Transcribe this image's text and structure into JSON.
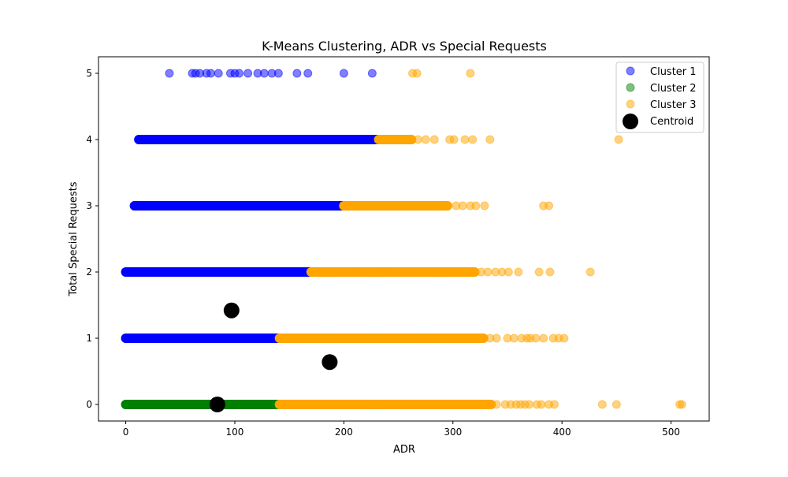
{
  "chart_data": {
    "type": "scatter",
    "title": "K-Means Clustering, ADR vs Special Requests",
    "xlabel": "ADR",
    "ylabel": "Total Special Requests",
    "xlim": [
      -25,
      535
    ],
    "ylim": [
      -0.25,
      5.25
    ],
    "xticks": [
      0,
      100,
      200,
      300,
      400,
      500
    ],
    "yticks": [
      0,
      1,
      2,
      3,
      4,
      5
    ],
    "grid": false,
    "legend_position": "top-right",
    "series": [
      {
        "name": "Cluster 1",
        "color": "#0000ff",
        "segments": [
          {
            "y": 1,
            "x_from": 0,
            "x_to": 141
          },
          {
            "y": 2,
            "x_from": 0,
            "x_to": 170
          },
          {
            "y": 3,
            "x_from": 8,
            "x_to": 200
          },
          {
            "y": 4,
            "x_from": 12,
            "x_to": 232
          }
        ],
        "points": [
          {
            "x": 40,
            "y": 5
          },
          {
            "x": 61,
            "y": 5
          },
          {
            "x": 64,
            "y": 5
          },
          {
            "x": 68,
            "y": 5
          },
          {
            "x": 74,
            "y": 5
          },
          {
            "x": 78,
            "y": 5
          },
          {
            "x": 85,
            "y": 5
          },
          {
            "x": 96,
            "y": 5
          },
          {
            "x": 100,
            "y": 5
          },
          {
            "x": 104,
            "y": 5
          },
          {
            "x": 112,
            "y": 5
          },
          {
            "x": 121,
            "y": 5
          },
          {
            "x": 127,
            "y": 5
          },
          {
            "x": 134,
            "y": 5
          },
          {
            "x": 140,
            "y": 5
          },
          {
            "x": 157,
            "y": 5
          },
          {
            "x": 167,
            "y": 5
          },
          {
            "x": 200,
            "y": 5
          },
          {
            "x": 226,
            "y": 5
          },
          {
            "x": 12,
            "y": 4
          },
          {
            "x": 21,
            "y": 4
          },
          {
            "x": 29,
            "y": 4
          },
          {
            "x": 8,
            "y": 3
          },
          {
            "x": 1,
            "y": 2
          },
          {
            "x": 1,
            "y": 1
          }
        ]
      },
      {
        "name": "Cluster 2",
        "color": "#008000",
        "segments": [
          {
            "y": 0,
            "x_from": 0,
            "x_to": 141
          }
        ],
        "points": [
          {
            "x": 0,
            "y": 0
          },
          {
            "x": 4,
            "y": 0
          }
        ]
      },
      {
        "name": "Cluster 3",
        "color": "#ffa500",
        "segments": [
          {
            "y": 0,
            "x_from": 141,
            "x_to": 335
          },
          {
            "y": 1,
            "x_from": 141,
            "x_to": 328
          },
          {
            "y": 2,
            "x_from": 170,
            "x_to": 320
          },
          {
            "y": 3,
            "x_from": 200,
            "x_to": 295
          },
          {
            "y": 4,
            "x_from": 232,
            "x_to": 262
          }
        ],
        "points": [
          {
            "x": 263,
            "y": 5
          },
          {
            "x": 267,
            "y": 5
          },
          {
            "x": 316,
            "y": 5
          },
          {
            "x": 268,
            "y": 4
          },
          {
            "x": 275,
            "y": 4
          },
          {
            "x": 283,
            "y": 4
          },
          {
            "x": 297,
            "y": 4
          },
          {
            "x": 301,
            "y": 4
          },
          {
            "x": 311,
            "y": 4
          },
          {
            "x": 318,
            "y": 4
          },
          {
            "x": 334,
            "y": 4
          },
          {
            "x": 452,
            "y": 4
          },
          {
            "x": 303,
            "y": 3
          },
          {
            "x": 309,
            "y": 3
          },
          {
            "x": 316,
            "y": 3
          },
          {
            "x": 321,
            "y": 3
          },
          {
            "x": 329,
            "y": 3
          },
          {
            "x": 383,
            "y": 3
          },
          {
            "x": 388,
            "y": 3
          },
          {
            "x": 326,
            "y": 2
          },
          {
            "x": 332,
            "y": 2
          },
          {
            "x": 339,
            "y": 2
          },
          {
            "x": 345,
            "y": 2
          },
          {
            "x": 351,
            "y": 2
          },
          {
            "x": 360,
            "y": 2
          },
          {
            "x": 379,
            "y": 2
          },
          {
            "x": 389,
            "y": 2
          },
          {
            "x": 426,
            "y": 2
          },
          {
            "x": 334,
            "y": 1
          },
          {
            "x": 340,
            "y": 1
          },
          {
            "x": 350,
            "y": 1
          },
          {
            "x": 356,
            "y": 1
          },
          {
            "x": 363,
            "y": 1
          },
          {
            "x": 368,
            "y": 1
          },
          {
            "x": 371,
            "y": 1
          },
          {
            "x": 376,
            "y": 1
          },
          {
            "x": 383,
            "y": 1
          },
          {
            "x": 392,
            "y": 1
          },
          {
            "x": 397,
            "y": 1
          },
          {
            "x": 402,
            "y": 1
          },
          {
            "x": 340,
            "y": 0
          },
          {
            "x": 348,
            "y": 0
          },
          {
            "x": 353,
            "y": 0
          },
          {
            "x": 358,
            "y": 0
          },
          {
            "x": 362,
            "y": 0
          },
          {
            "x": 366,
            "y": 0
          },
          {
            "x": 370,
            "y": 0
          },
          {
            "x": 377,
            "y": 0
          },
          {
            "x": 381,
            "y": 0
          },
          {
            "x": 388,
            "y": 0
          },
          {
            "x": 393,
            "y": 0
          },
          {
            "x": 437,
            "y": 0
          },
          {
            "x": 450,
            "y": 0
          },
          {
            "x": 508,
            "y": 0
          },
          {
            "x": 510,
            "y": 0
          }
        ]
      }
    ],
    "centroids": {
      "name": "Centroid",
      "color": "#000000",
      "points": [
        {
          "x": 97,
          "y": 1.42
        },
        {
          "x": 187,
          "y": 0.64
        },
        {
          "x": 84,
          "y": 0.0
        }
      ]
    }
  }
}
